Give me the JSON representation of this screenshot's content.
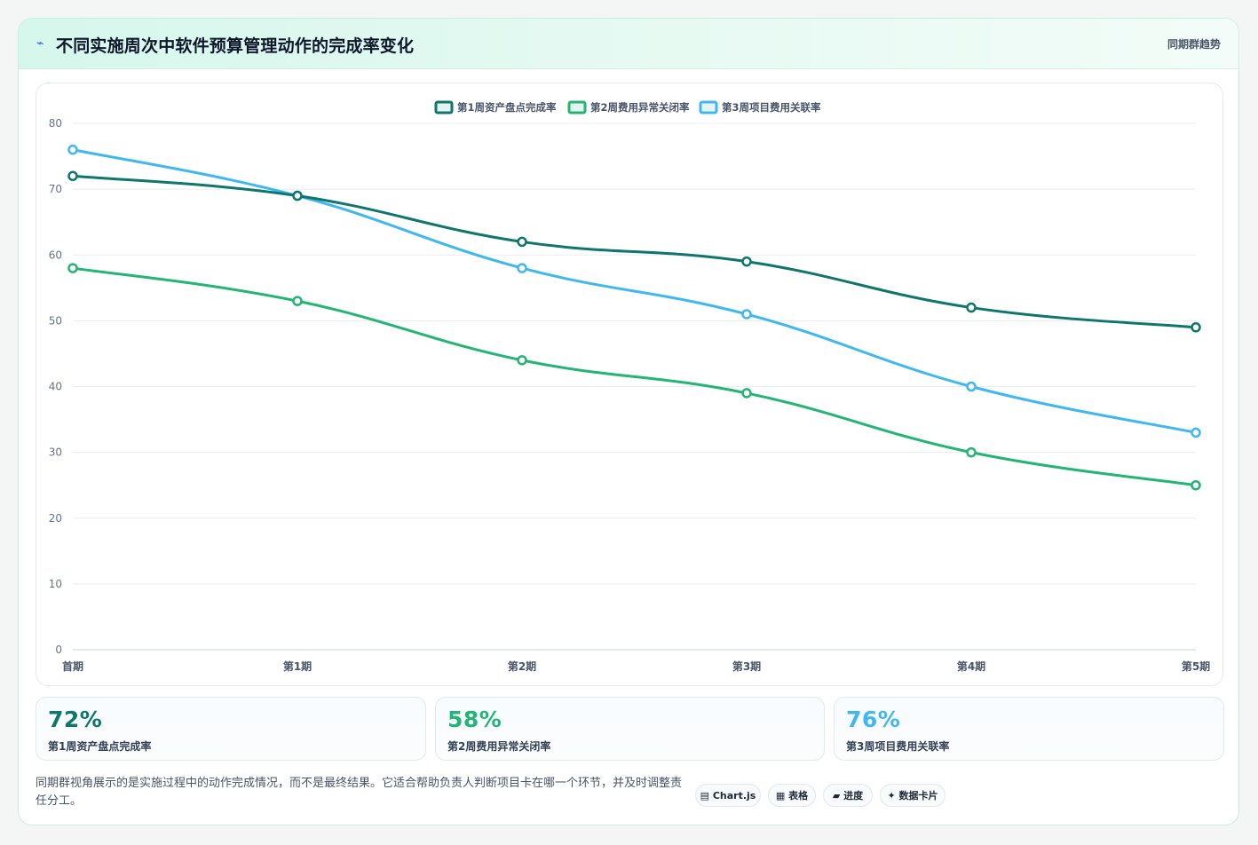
{
  "header": {
    "icon": "lightning-icon",
    "title": "不同实施周次中软件预算管理动作的完成率变化",
    "right_label": "同期群趋势"
  },
  "chart_data": {
    "type": "line",
    "x": [
      "首期",
      "第1期",
      "第2期",
      "第3期",
      "第4期",
      "第5期"
    ],
    "series": [
      {
        "name": "第1周资产盘点完成率",
        "values": [
          72,
          69,
          62,
          59,
          52,
          49
        ],
        "color": "#0f766e"
      },
      {
        "name": "第2周费用异常关闭率",
        "values": [
          58,
          53,
          44,
          39,
          30,
          25
        ],
        "color": "#22b573"
      },
      {
        "name": "第3周项目费用关联率",
        "values": [
          76,
          69,
          58,
          51,
          40,
          33
        ],
        "color": "#3fb8f0"
      }
    ],
    "ylim": [
      0,
      80
    ],
    "yticks": [
      0,
      10,
      20,
      30,
      40,
      50,
      60,
      70,
      80
    ],
    "grid": true,
    "legend": "top-center"
  },
  "stats": [
    {
      "value": "72%",
      "label": "第1周资产盘点完成率",
      "color": "#0f766e"
    },
    {
      "value": "58%",
      "label": "第2周费用异常关闭率",
      "color": "#22b573"
    },
    {
      "value": "76%",
      "label": "第3周项目费用关联率",
      "color": "#3fb8f0"
    }
  ],
  "footnote": "同期群视角展示的是实施过程中的动作完成情况，而不是最终结果。它适合帮助负责人判断项目卡在哪一个环节，并及时调整责任分工。",
  "tags": [
    {
      "label": "▤ Chart.js"
    },
    {
      "label": "▦ 表格"
    },
    {
      "label": "▰ 进度"
    },
    {
      "label": "✦ 数据卡片"
    }
  ]
}
